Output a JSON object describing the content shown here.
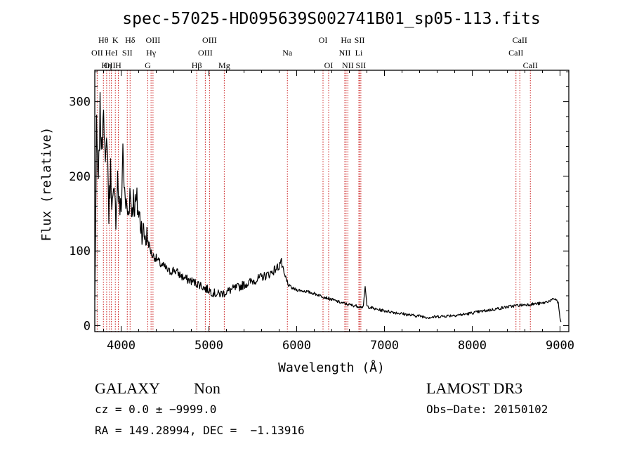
{
  "chart_data": {
    "type": "line",
    "title": "spec-57025-HD095639S002741B01_sp05-113.fits",
    "xlabel": "Wavelength (Å)",
    "ylabel": "Flux (relative)",
    "xlim": [
      3700,
      9100
    ],
    "ylim": [
      -8,
      342
    ],
    "x_ticks": [
      4000,
      5000,
      6000,
      7000,
      8000,
      9000
    ],
    "x_tick_labels": [
      "4000",
      "5000",
      "6000",
      "7000",
      "8000",
      "9000"
    ],
    "y_ticks": [
      0,
      100,
      200,
      300
    ],
    "y_tick_labels": [
      "0",
      "100",
      "200",
      "300"
    ],
    "line_color": "#000000",
    "marker_color": "#cc2222",
    "series": [
      {
        "name": "flux",
        "x": [
          3700,
          3720,
          3740,
          3760,
          3780,
          3800,
          3820,
          3840,
          3860,
          3880,
          3900,
          3920,
          3940,
          3960,
          3980,
          4000,
          4020,
          4040,
          4060,
          4080,
          4100,
          4120,
          4140,
          4160,
          4180,
          4200,
          4250,
          4300,
          4350,
          4400,
          4450,
          4500,
          4550,
          4600,
          4650,
          4700,
          4750,
          4800,
          4850,
          4900,
          4950,
          5000,
          5050,
          5100,
          5150,
          5200,
          5250,
          5300,
          5350,
          5400,
          5450,
          5500,
          5550,
          5600,
          5650,
          5700,
          5750,
          5800,
          5820,
          5850,
          5900,
          5950,
          6000,
          6050,
          6100,
          6200,
          6300,
          6400,
          6500,
          6600,
          6700,
          6760,
          6780,
          6800,
          6850,
          6900,
          7000,
          7100,
          7200,
          7300,
          7400,
          7500,
          7600,
          7700,
          7800,
          7900,
          8000,
          8100,
          8200,
          8300,
          8400,
          8500,
          8600,
          8700,
          8800,
          8850,
          8900,
          8950,
          8980,
          9000,
          9010
        ],
        "y": [
          30,
          260,
          180,
          290,
          230,
          310,
          200,
          260,
          150,
          210,
          160,
          170,
          150,
          200,
          160,
          150,
          240,
          170,
          160,
          150,
          180,
          155,
          170,
          160,
          165,
          150,
          125,
          115,
          95,
          90,
          82,
          78,
          72,
          75,
          70,
          65,
          62,
          60,
          57,
          55,
          50,
          48,
          44,
          42,
          43,
          45,
          48,
          50,
          52,
          55,
          57,
          60,
          62,
          65,
          67,
          70,
          75,
          80,
          88,
          70,
          55,
          50,
          48,
          47,
          46,
          43,
          39,
          35,
          31,
          28,
          26,
          25,
          53,
          26,
          24,
          22,
          20,
          18,
          16,
          14,
          13,
          11,
          12,
          13,
          14,
          15,
          17,
          19,
          21,
          23,
          25,
          27,
          28,
          29,
          30,
          32,
          34,
          36,
          30,
          10,
          5
        ]
      }
    ],
    "line_markers": [
      {
        "label": "OII",
        "wavelength": 3727,
        "row": 2
      },
      {
        "label": "Hθ",
        "wavelength": 3798,
        "row": 1
      },
      {
        "label": "Hη",
        "wavelength": 3835,
        "row": 3
      },
      {
        "label": "OII",
        "wavelength": 3869,
        "row": 3
      },
      {
        "label": "HeI",
        "wavelength": 3889,
        "row": 2
      },
      {
        "label": "K",
        "wavelength": 3934,
        "row": 1
      },
      {
        "label": "H",
        "wavelength": 3968,
        "row": 3
      },
      {
        "label": "SII",
        "wavelength": 4070,
        "row": 2
      },
      {
        "label": "Hδ",
        "wavelength": 4102,
        "row": 1
      },
      {
        "label": "G",
        "wavelength": 4304,
        "row": 3
      },
      {
        "label": "Hγ",
        "wavelength": 4341,
        "row": 2
      },
      {
        "label": "OIII",
        "wavelength": 4363,
        "row": 1
      },
      {
        "label": "Hβ",
        "wavelength": 4861,
        "row": 3
      },
      {
        "label": "OIII",
        "wavelength": 4959,
        "row": 2
      },
      {
        "label": "OIII",
        "wavelength": 5007,
        "row": 1
      },
      {
        "label": "Mg",
        "wavelength": 5175,
        "row": 3
      },
      {
        "label": "Na",
        "wavelength": 5894,
        "row": 2
      },
      {
        "label": "OI",
        "wavelength": 6300,
        "row": 1
      },
      {
        "label": "OI",
        "wavelength": 6364,
        "row": 3
      },
      {
        "label": "NII",
        "wavelength": 6548,
        "row": 2
      },
      {
        "label": "Hα",
        "wavelength": 6563,
        "row": 1
      },
      {
        "label": "NII",
        "wavelength": 6583,
        "row": 3
      },
      {
        "label": "Li",
        "wavelength": 6708,
        "row": 2
      },
      {
        "label": "SII",
        "wavelength": 6716,
        "row": 1
      },
      {
        "label": "SII",
        "wavelength": 6731,
        "row": 3
      },
      {
        "label": "CaII",
        "wavelength": 8498,
        "row": 2
      },
      {
        "label": "CaII",
        "wavelength": 8542,
        "row": 1
      },
      {
        "label": "CaII",
        "wavelength": 8662,
        "row": 3
      }
    ]
  },
  "info": {
    "object_class": "GALAXY",
    "subclass": "Non",
    "survey": "LAMOST DR3",
    "redshift": "cz = 0.0 ± −9999.0",
    "obs_date": "Obs−Date: 20150102",
    "coordinates": "RA = 149.28994, DEC =  −1.13916"
  }
}
